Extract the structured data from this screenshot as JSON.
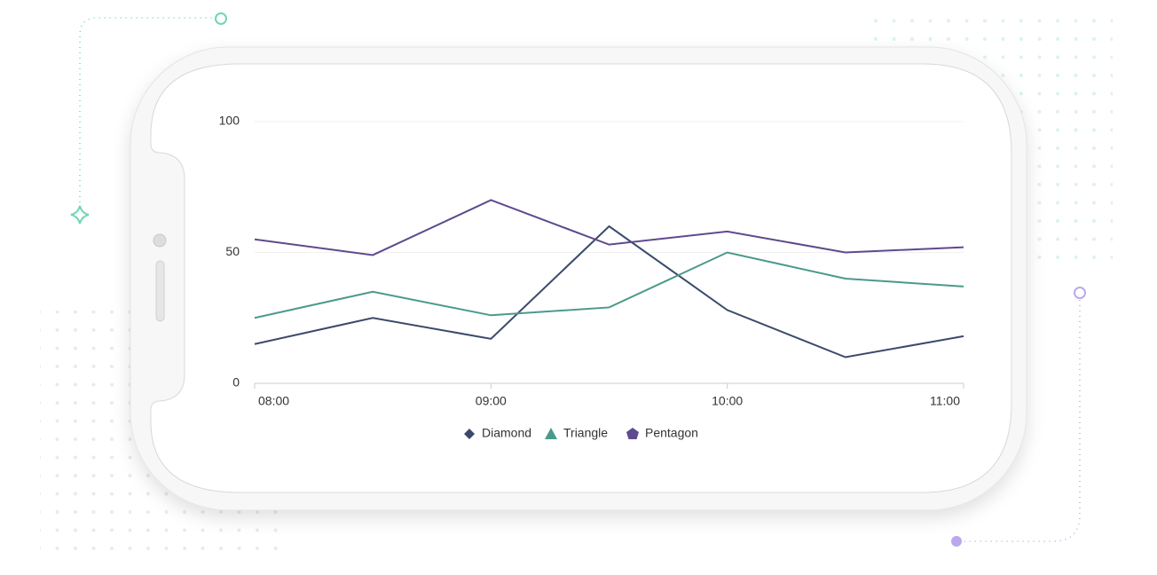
{
  "chart_data": {
    "type": "line",
    "categories": [
      "08:00",
      null,
      "09:00",
      null,
      "10:00",
      null,
      "11:00"
    ],
    "series": [
      {
        "name": "Diamond",
        "color": "#3b4a6b",
        "values": [
          15,
          25,
          17,
          60,
          28,
          10,
          18
        ]
      },
      {
        "name": "Triangle",
        "color": "#4a9a8a",
        "values": [
          25,
          35,
          26,
          29,
          50,
          40,
          37
        ]
      },
      {
        "name": "Pentagon",
        "color": "#5e4a8e",
        "values": [
          55,
          49,
          70,
          53,
          58,
          50,
          52
        ]
      }
    ],
    "ylim": [
      0,
      100
    ],
    "yticks": [
      0,
      50,
      100
    ],
    "grid": true,
    "legend": "bottom"
  }
}
